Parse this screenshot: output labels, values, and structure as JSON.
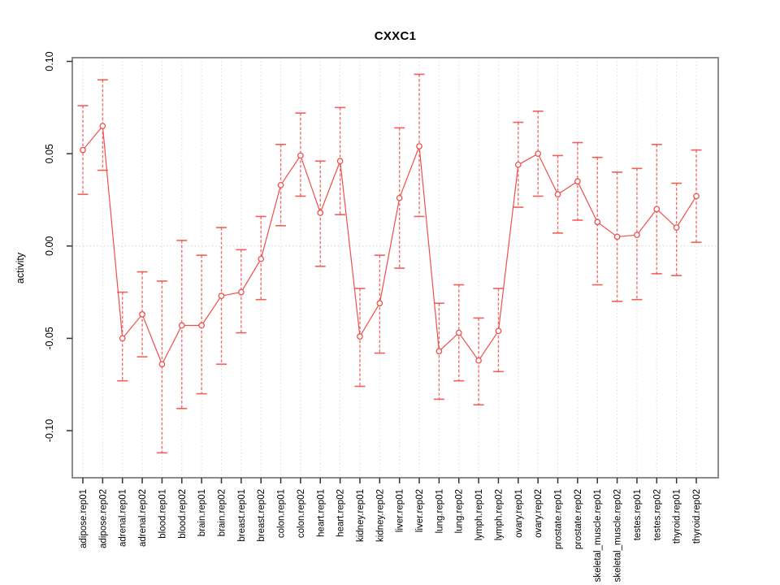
{
  "title": "CXXC1",
  "chart_data": {
    "type": "line",
    "title": "CXXC1",
    "xlabel": "",
    "ylabel": "activity",
    "legend": "none",
    "grid": "vertical dotted gridlines at each category; dotted horizontal line at 0",
    "marker": "open-circle",
    "error_bars": true,
    "line_color": "#ef4f4b",
    "axis_box_color": "#8c8c8c",
    "ylim": [
      -0.1255,
      0.102
    ],
    "yticks": [
      0.1,
      0.05,
      0.0,
      -0.05,
      -0.1
    ],
    "ytick_labels": [
      "0.10",
      "0.05",
      "0.00",
      "-0.05",
      "-0.10"
    ],
    "categories": [
      "adipose.rep01",
      "adipose.rep02",
      "adrenal.rep01",
      "adrenal.rep02",
      "blood.rep01",
      "blood.rep02",
      "brain.rep01",
      "brain.rep02",
      "breast.rep01",
      "breast.rep02",
      "colon.rep01",
      "colon.rep02",
      "heart.rep01",
      "heart.rep02",
      "kidney.rep01",
      "kidney.rep02",
      "liver.rep01",
      "liver.rep02",
      "lung.rep01",
      "lung.rep02",
      "lymph.rep01",
      "lymph.rep02",
      "ovary.rep01",
      "ovary.rep02",
      "prostate.rep01",
      "prostate.rep02",
      "skeletal_muscle.rep01",
      "skeletal_muscle.rep02",
      "testes.rep01",
      "testes.rep02",
      "thyroid.rep01",
      "thyroid.rep02"
    ],
    "series": [
      {
        "name": "activity",
        "values": [
          0.052,
          0.065,
          -0.05,
          -0.037,
          -0.064,
          -0.043,
          -0.043,
          -0.027,
          -0.025,
          -0.007,
          0.033,
          0.049,
          0.018,
          0.046,
          -0.049,
          -0.031,
          0.026,
          0.054,
          -0.057,
          -0.047,
          -0.062,
          -0.046,
          0.044,
          0.05,
          0.028,
          0.035,
          0.013,
          0.005,
          0.006,
          0.02,
          0.01,
          0.027
        ],
        "ci_low": [
          0.028,
          0.041,
          -0.073,
          -0.06,
          -0.112,
          -0.088,
          -0.08,
          -0.064,
          -0.047,
          -0.029,
          0.011,
          0.027,
          -0.011,
          0.017,
          -0.076,
          -0.058,
          -0.012,
          0.016,
          -0.083,
          -0.073,
          -0.086,
          -0.068,
          0.021,
          0.027,
          0.007,
          0.014,
          -0.021,
          -0.03,
          -0.029,
          -0.015,
          -0.016,
          0.002
        ],
        "ci_high": [
          0.076,
          0.09,
          -0.025,
          -0.014,
          -0.019,
          0.003,
          -0.005,
          0.01,
          -0.002,
          0.016,
          0.055,
          0.072,
          0.046,
          0.075,
          -0.023,
          -0.005,
          0.064,
          0.093,
          -0.031,
          -0.021,
          -0.039,
          -0.023,
          0.067,
          0.073,
          0.049,
          0.056,
          0.048,
          0.04,
          0.042,
          0.055,
          0.034,
          0.052
        ]
      }
    ]
  }
}
